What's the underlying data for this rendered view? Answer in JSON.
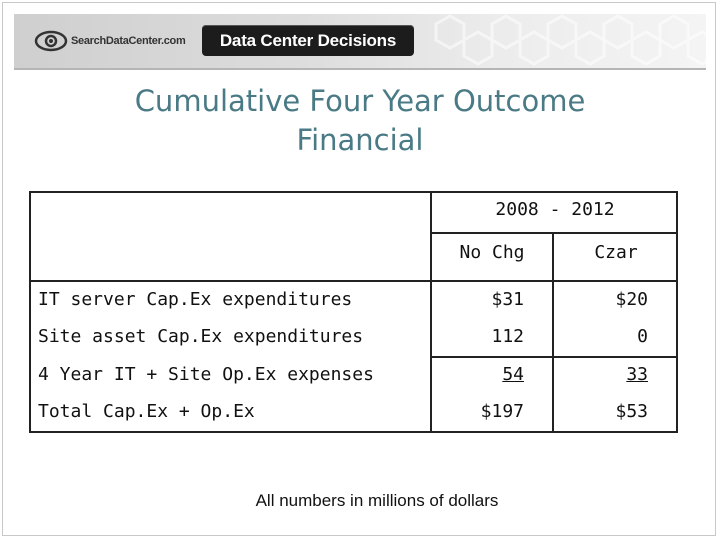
{
  "header": {
    "site_logo_text": "SearchDataCenter.com",
    "brand_badge": "Data Center Decisions"
  },
  "title_lines": [
    "Cumulative Four Year Outcome",
    "Financial"
  ],
  "table": {
    "period_header": "2008 - 2012",
    "column_headers": [
      "No Chg",
      "Czar"
    ],
    "rows": [
      {
        "label": "IT server Cap.Ex expenditures",
        "no_chg": "$31",
        "czar": "$20"
      },
      {
        "label": "Site asset Cap.Ex expenditures",
        "no_chg": "112",
        "czar": "0"
      },
      {
        "label": "4 Year IT + Site Op.Ex expenses",
        "no_chg": "54",
        "czar": "33"
      },
      {
        "label": "Total Cap.Ex + Op.Ex",
        "no_chg": "$197",
        "czar": "$53"
      }
    ]
  },
  "footnote": "All numbers in millions of dollars",
  "colors": {
    "title": "#4a7a85",
    "badge_bg": "#1c1c1c",
    "table_border": "#222222"
  },
  "icons": [
    "eye-icon"
  ]
}
